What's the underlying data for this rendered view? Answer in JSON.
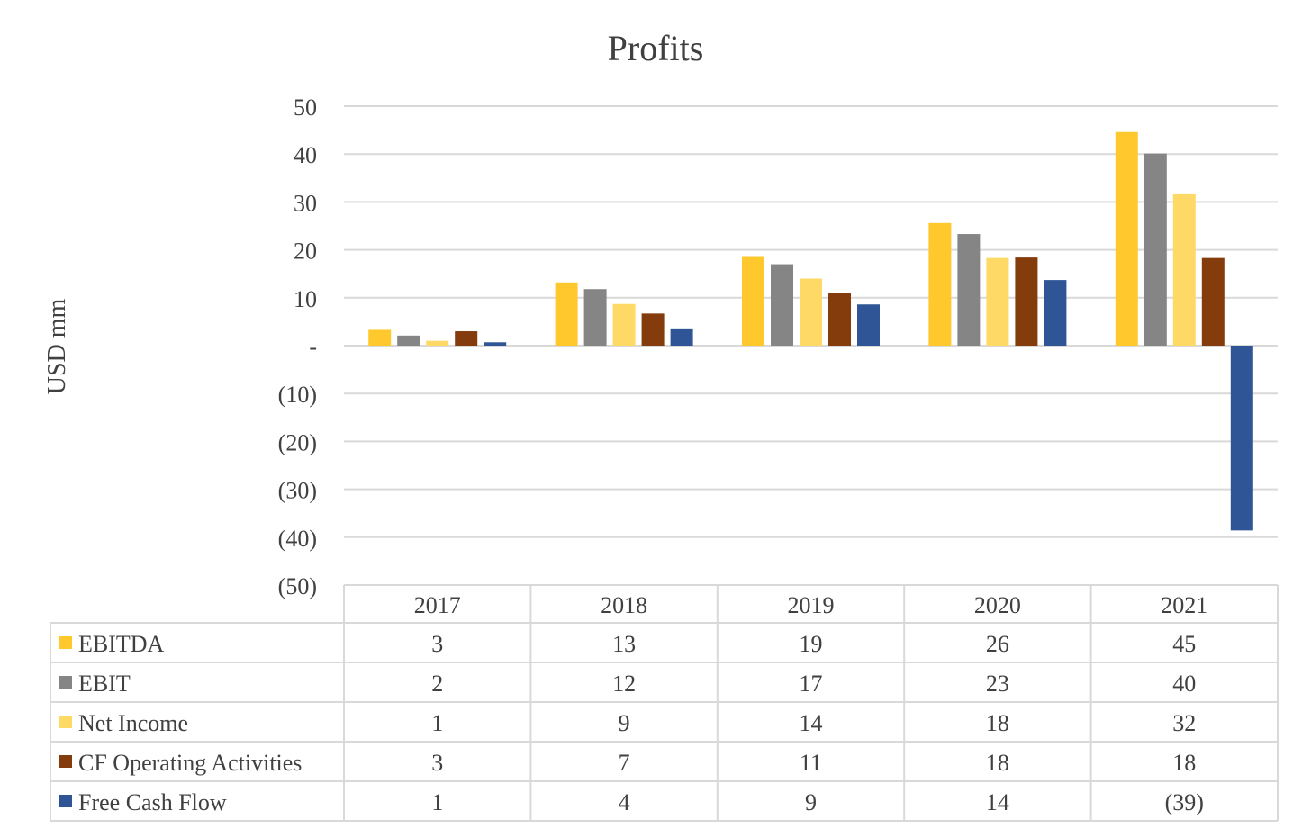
{
  "chart_data": {
    "type": "bar",
    "title": "Profits",
    "ylabel": "USD mm",
    "xlabel": "",
    "ylim": [
      -50,
      50
    ],
    "yticks": [
      50,
      40,
      30,
      20,
      10,
      0,
      -10,
      -20,
      -30,
      -40,
      -50
    ],
    "ytick_labels": [
      "50",
      "40",
      "30",
      "20",
      "10",
      "-",
      "(10)",
      "(20)",
      "(30)",
      "(40)",
      "(50)"
    ],
    "grid": true,
    "legend": "data-table",
    "categories": [
      "2017",
      "2018",
      "2019",
      "2020",
      "2021"
    ],
    "series": [
      {
        "name": "EBITDA",
        "color": "#FFC92E",
        "values": [
          3.3,
          13.2,
          18.7,
          25.6,
          44.6
        ],
        "labels": [
          "3",
          "13",
          "19",
          "26",
          "45"
        ]
      },
      {
        "name": "EBIT",
        "color": "#858585",
        "values": [
          2.1,
          11.8,
          17.0,
          23.3,
          40.1
        ],
        "labels": [
          "2",
          "12",
          "17",
          "23",
          "40"
        ]
      },
      {
        "name": "Net Income",
        "color": "#FFD966",
        "values": [
          1.0,
          8.7,
          14.0,
          18.3,
          31.6
        ],
        "labels": [
          "1",
          "9",
          "14",
          "18",
          "32"
        ]
      },
      {
        "name": "CF Operating Activities",
        "color": "#843C0C",
        "values": [
          3.0,
          6.7,
          11.0,
          18.4,
          18.3
        ],
        "labels": [
          "3",
          "7",
          "11",
          "18",
          "18"
        ]
      },
      {
        "name": "Free Cash Flow",
        "color": "#2F5597",
        "values": [
          0.7,
          3.6,
          8.6,
          13.7,
          -38.6
        ],
        "labels": [
          "1",
          "4",
          "9",
          "14",
          "(39)"
        ]
      }
    ]
  }
}
